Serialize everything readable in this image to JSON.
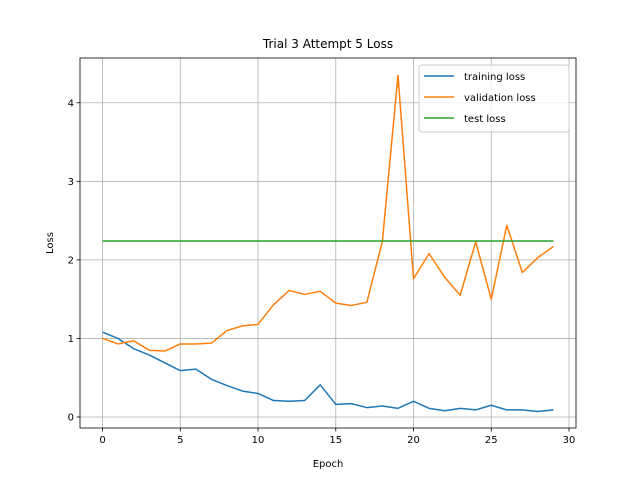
{
  "chart_data": {
    "type": "line",
    "title": "Trial 3 Attempt 5 Loss",
    "xlabel": "Epoch",
    "ylabel": "Loss",
    "xlim": [
      -1.45,
      30.45
    ],
    "ylim": [
      -0.14,
      4.57
    ],
    "xticks": [
      0,
      5,
      10,
      15,
      20,
      25,
      30
    ],
    "yticks": [
      0,
      1,
      2,
      3,
      4
    ],
    "grid": true,
    "legend_position": "top-right",
    "x": [
      0,
      1,
      2,
      3,
      4,
      5,
      6,
      7,
      8,
      9,
      10,
      11,
      12,
      13,
      14,
      15,
      16,
      17,
      18,
      19,
      20,
      21,
      22,
      23,
      24,
      25,
      26,
      27,
      28,
      29
    ],
    "series": [
      {
        "name": "training loss",
        "color": "#1f77b4",
        "values": [
          1.08,
          1.0,
          0.87,
          0.79,
          0.69,
          0.59,
          0.61,
          0.48,
          0.4,
          0.33,
          0.3,
          0.21,
          0.2,
          0.21,
          0.41,
          0.16,
          0.17,
          0.12,
          0.14,
          0.11,
          0.2,
          0.11,
          0.08,
          0.11,
          0.09,
          0.15,
          0.09,
          0.09,
          0.07,
          0.09
        ]
      },
      {
        "name": "validation loss",
        "color": "#ff7f0e",
        "values": [
          1.0,
          0.93,
          0.97,
          0.85,
          0.84,
          0.93,
          0.93,
          0.94,
          1.1,
          1.16,
          1.18,
          1.43,
          1.61,
          1.56,
          1.6,
          1.45,
          1.42,
          1.46,
          2.24,
          4.35,
          1.76,
          2.08,
          1.78,
          1.55,
          2.23,
          1.5,
          2.44,
          1.84,
          2.03,
          2.17
        ]
      },
      {
        "name": "test loss",
        "color": "#2ca02c",
        "values": [
          2.24,
          2.24,
          2.24,
          2.24,
          2.24,
          2.24,
          2.24,
          2.24,
          2.24,
          2.24,
          2.24,
          2.24,
          2.24,
          2.24,
          2.24,
          2.24,
          2.24,
          2.24,
          2.24,
          2.24,
          2.24,
          2.24,
          2.24,
          2.24,
          2.24,
          2.24,
          2.24,
          2.24,
          2.24,
          2.24
        ]
      }
    ]
  }
}
